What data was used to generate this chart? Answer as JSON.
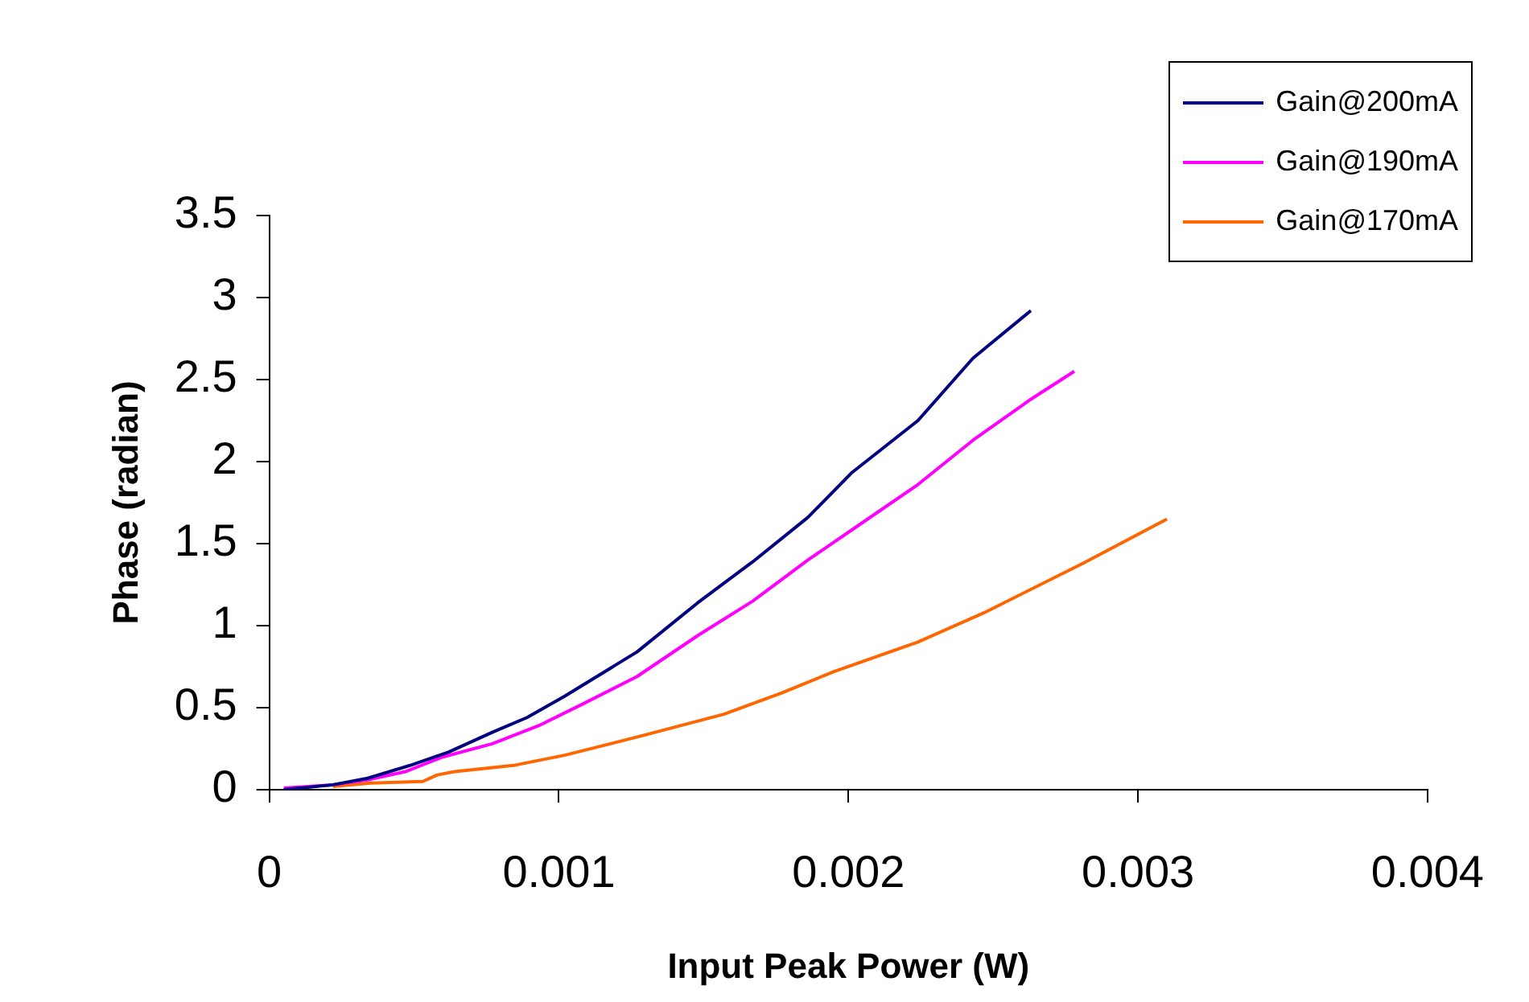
{
  "chart_data": {
    "type": "line",
    "xlabel": "Input Peak Power (W)",
    "ylabel": "Phase (radian)",
    "xlim": [
      0,
      0.004
    ],
    "xticks": [
      0,
      0.001,
      0.002,
      0.003,
      0.004
    ],
    "ylim": [
      0,
      3.5
    ],
    "yticks": [
      0,
      0.5,
      1,
      1.5,
      2,
      2.5,
      3,
      3.5
    ],
    "grid": false,
    "legend": "top right",
    "marker": "none",
    "line_style": "solid",
    "series": [
      {
        "name": "Gain@200mA",
        "color": "#000080",
        "x": [
          5e-05,
          0.00022,
          0.00034,
          0.00049,
          0.00062,
          0.00077,
          0.00089,
          0.00102,
          0.00127,
          0.00148,
          0.00167,
          0.00186,
          0.00201,
          0.00224,
          0.00243,
          0.00263
        ],
        "values": [
          0,
          0.03,
          0.07,
          0.15,
          0.23,
          0.35,
          0.44,
          0.57,
          0.84,
          1.14,
          1.39,
          1.66,
          1.93,
          2.25,
          2.63,
          2.92
        ]
      },
      {
        "name": "Gain@190mA",
        "color": "#ff00ff",
        "x": [
          5e-05,
          0.00022,
          0.00034,
          0.00047,
          0.0006,
          0.00077,
          0.00093,
          0.00108,
          0.00127,
          0.00148,
          0.00167,
          0.00186,
          0.00205,
          0.00224,
          0.00243,
          0.00263,
          0.00278
        ],
        "values": [
          0.01,
          0.03,
          0.06,
          0.11,
          0.2,
          0.28,
          0.39,
          0.52,
          0.69,
          0.94,
          1.15,
          1.4,
          1.63,
          1.86,
          2.13,
          2.38,
          2.55
        ]
      },
      {
        "name": "Gain@170mA",
        "color": "#ff6600",
        "x": [
          0.00022,
          0.00035,
          0.00053,
          0.00058,
          0.00064,
          0.00085,
          0.00102,
          0.00129,
          0.00157,
          0.00177,
          0.00195,
          0.00224,
          0.00247,
          0.00281,
          0.0031
        ],
        "values": [
          0.02,
          0.04,
          0.05,
          0.09,
          0.11,
          0.15,
          0.21,
          0.33,
          0.46,
          0.59,
          0.72,
          0.9,
          1.08,
          1.38,
          1.65
        ]
      }
    ]
  }
}
